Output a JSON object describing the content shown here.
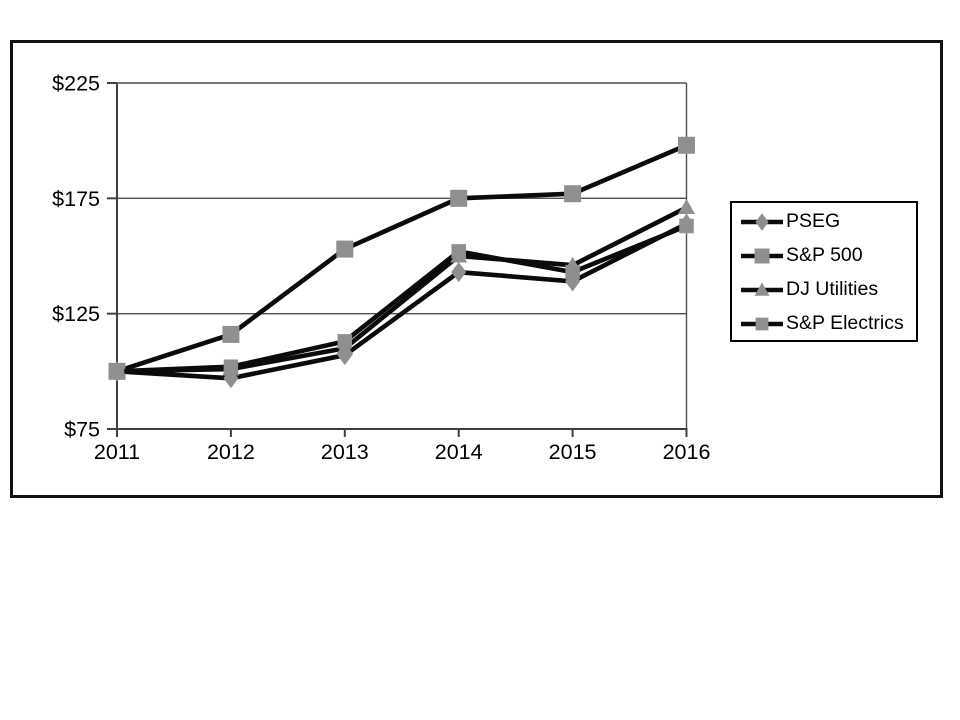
{
  "chart_data": {
    "type": "line",
    "title": "",
    "x_labels": [
      "2011",
      "2012",
      "2013",
      "2014",
      "2015",
      "2016"
    ],
    "y_ticks": [
      {
        "value": 225,
        "label": "$225"
      },
      {
        "value": 175,
        "label": "$175"
      },
      {
        "value": 125,
        "label": "$125"
      },
      {
        "value": 75,
        "label": "$75"
      }
    ],
    "ylim": [
      75,
      225
    ],
    "grid": true,
    "legend_position": "right",
    "series": [
      {
        "name": "PSEG",
        "marker": "diamond",
        "values": [
          100,
          97,
          107,
          143,
          139,
          164
        ]
      },
      {
        "name": "S&P 500",
        "marker": "square-large",
        "values": [
          100,
          116,
          153,
          175,
          177,
          198
        ]
      },
      {
        "name": "DJ Utilities",
        "marker": "triangle",
        "values": [
          100,
          101,
          110,
          150,
          146,
          171
        ]
      },
      {
        "name": "S&P Electrics",
        "marker": "square",
        "values": [
          100,
          102,
          113,
          152,
          143,
          163
        ]
      }
    ],
    "colors": {
      "line": "#0b0b0b",
      "marker_fill": "#8f8f8f",
      "axis": "#3f3f3f",
      "grid": "#4f4f4f",
      "text": "#000000",
      "legend_border": "#000000"
    }
  }
}
